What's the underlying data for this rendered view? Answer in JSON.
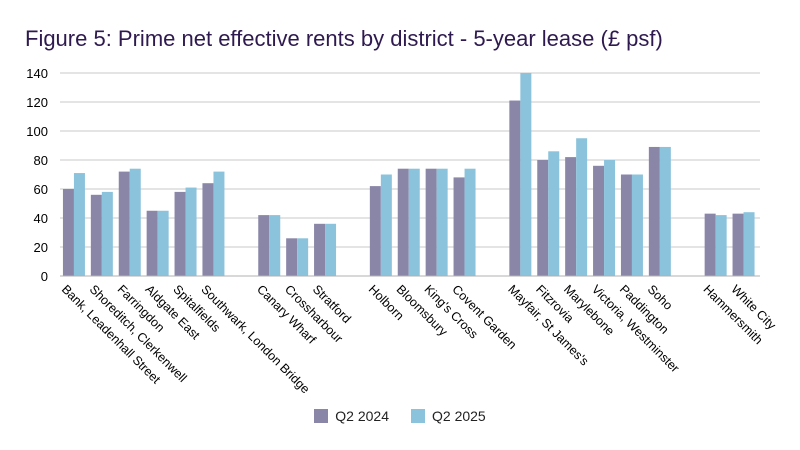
{
  "chart_data": {
    "type": "bar",
    "title": "Figure 5: Prime net effective rents by district - 5-year lease (£ psf)",
    "xlabel": "",
    "ylabel": "",
    "ylim": [
      0,
      140
    ],
    "yticks": [
      0,
      20,
      40,
      60,
      80,
      100,
      120,
      140
    ],
    "grid": true,
    "legend_position": "bottom",
    "groups": [
      [
        "Bank, Leadenhall Street",
        "Shoreditch, Clerkenwell",
        "Farringdon",
        "Aldgate East",
        "Spitalfields",
        "Southwark, London Bridge"
      ],
      [
        "Canary Wharf",
        "Crossharbour",
        "Stratford"
      ],
      [
        "Holborn",
        "Bloomsbury",
        "King's Cross",
        "Covent Garden"
      ],
      [
        "Mayfair, St James's",
        "Fitzrovia",
        "Marylebone",
        "Victoria, Westminster",
        "Paddington",
        "Soho"
      ],
      [
        "Hammersmith",
        "White City"
      ]
    ],
    "categories": [
      "Bank, Leadenhall Street",
      "Shoreditch, Clerkenwell",
      "Farringdon",
      "Aldgate East",
      "Spitalfields",
      "Southwark, London Bridge",
      "Canary Wharf",
      "Crossharbour",
      "Stratford",
      "Holborn",
      "Bloomsbury",
      "King's Cross",
      "Covent Garden",
      "Mayfair, St James's",
      "Fitzrovia",
      "Marylebone",
      "Victoria, Westminster",
      "Paddington",
      "Soho",
      "Hammersmith",
      "White City"
    ],
    "series": [
      {
        "name": "Q2 2024",
        "color": "#8a86a8",
        "values": [
          60,
          56,
          72,
          45,
          58,
          64,
          42,
          26,
          36,
          62,
          74,
          74,
          68,
          121,
          80,
          82,
          76,
          70,
          89,
          43,
          43
        ]
      },
      {
        "name": "Q2 2025",
        "color": "#8cc3dc",
        "values": [
          71,
          58,
          74,
          45,
          61,
          72,
          42,
          26,
          36,
          70,
          74,
          74,
          74,
          140,
          86,
          95,
          80,
          70,
          89,
          42,
          44
        ]
      }
    ]
  }
}
